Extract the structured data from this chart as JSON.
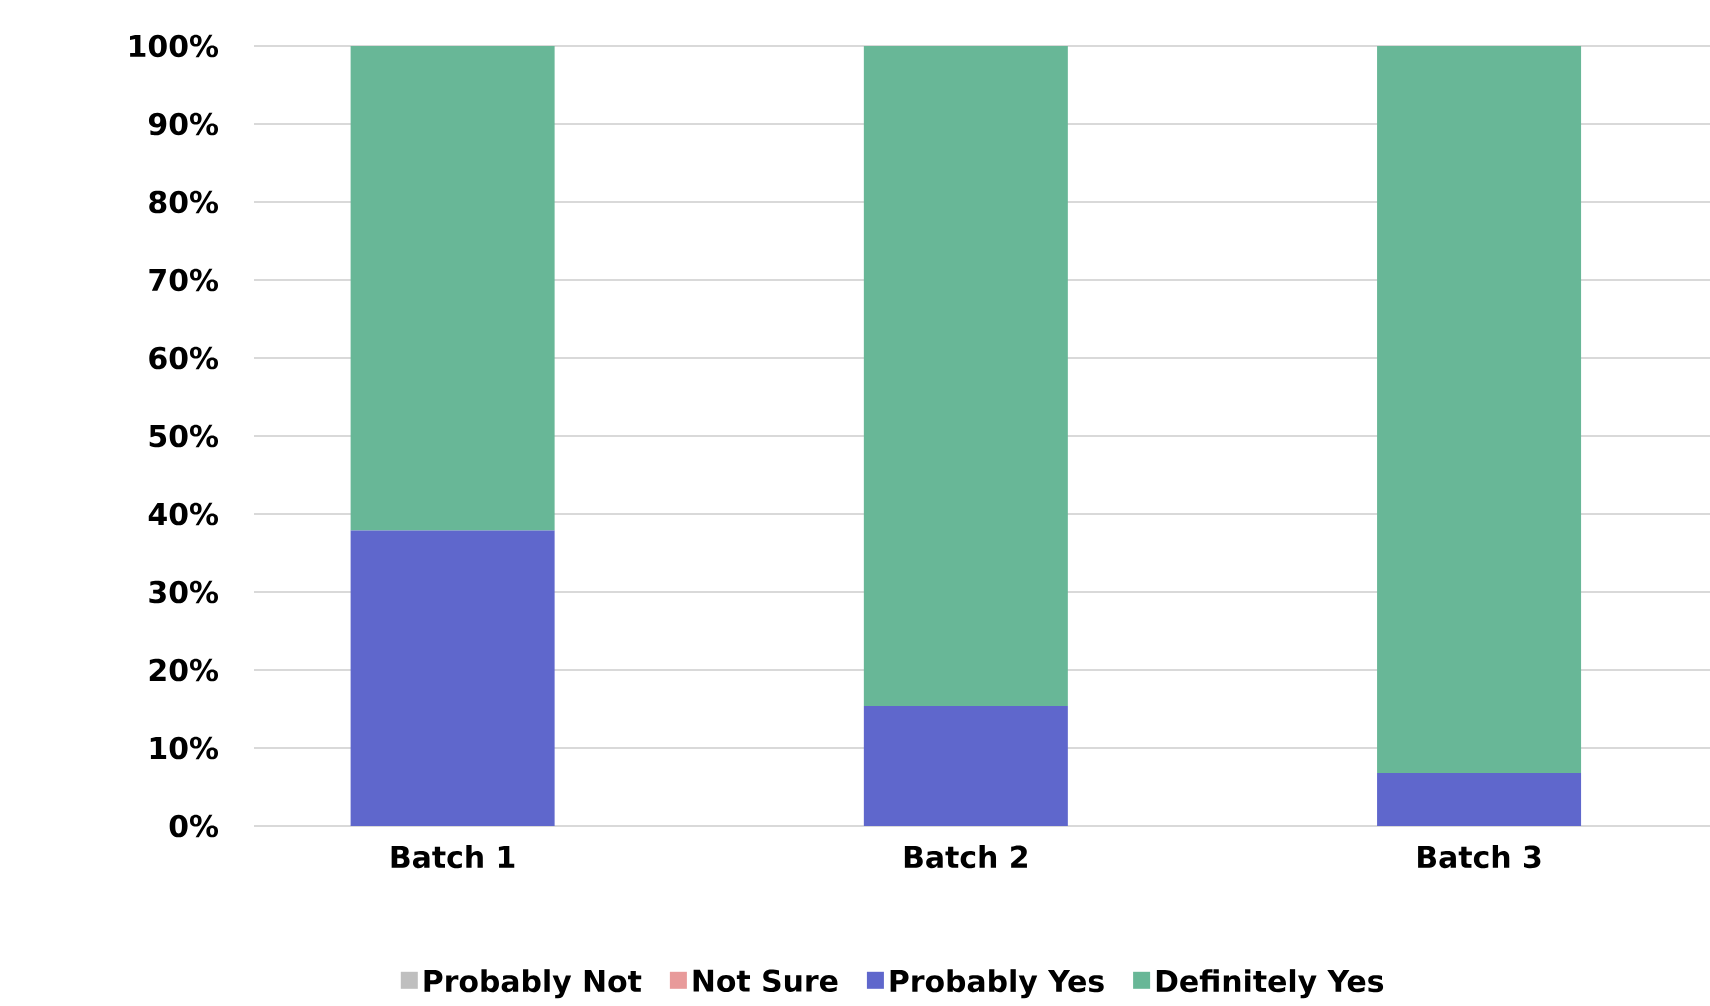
{
  "chart_data": {
    "type": "bar",
    "stacked": true,
    "categories": [
      "Batch 1",
      "Batch 2",
      "Batch 3"
    ],
    "series": [
      {
        "name": "Probably Not",
        "color": "#bfbfbf",
        "values": [
          0,
          0,
          0
        ]
      },
      {
        "name": "Not Sure",
        "color": "#e89a9a",
        "values": [
          0,
          0,
          0
        ]
      },
      {
        "name": "Probably Yes",
        "color": "#5f67cc",
        "values": [
          37.9,
          15.4,
          6.8
        ]
      },
      {
        "name": "Definitely Yes",
        "color": "#68b797",
        "values": [
          62.1,
          84.6,
          93.2
        ]
      }
    ],
    "ylim": [
      0,
      100
    ],
    "yticks": [
      {
        "value": 0,
        "label": "0%"
      },
      {
        "value": 10,
        "label": "10%"
      },
      {
        "value": 20,
        "label": "20%"
      },
      {
        "value": 30,
        "label": "30%"
      },
      {
        "value": 40,
        "label": "40%"
      },
      {
        "value": 50,
        "label": "50%"
      },
      {
        "value": 60,
        "label": "60%"
      },
      {
        "value": 70,
        "label": "70%"
      },
      {
        "value": 80,
        "label": "80%"
      },
      {
        "value": 90,
        "label": "90%"
      },
      {
        "value": 100,
        "label": "100%"
      }
    ],
    "grid": "y",
    "legend": "bottom"
  }
}
